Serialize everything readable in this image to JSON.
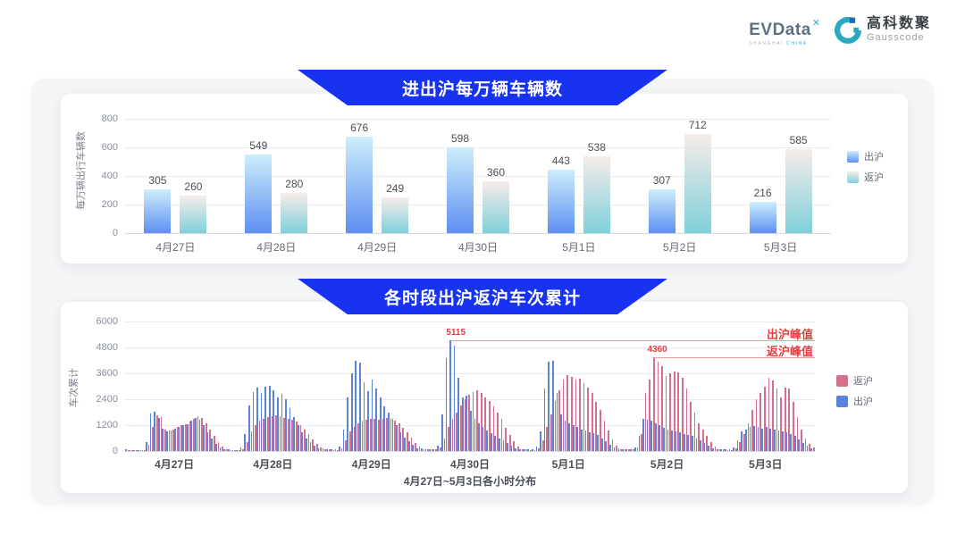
{
  "header": {
    "evdata": {
      "text": "EVData",
      "x_mark": "✕",
      "sub_left": "SHANGHAI",
      "sub_right": "CHINA"
    },
    "gausscode": {
      "name_cn": "高科数聚",
      "name_en": "Gausscode"
    }
  },
  "theme": {
    "banner_blue": "#1733f0",
    "c1_out_top": "#cdeefb",
    "c1_out_bottom": "#5e8ff2",
    "c1_ret_top": "#f7ece9",
    "c1_ret_bottom": "#7fd0da",
    "c2_out": "#5b82dc",
    "c2_ret": "#d5708c",
    "annotation_red": "#e04040",
    "logo_teal": "#35b4d6",
    "logo_slate": "#5d7186"
  },
  "chart_data": [
    {
      "type": "bar",
      "title": "进出沪每万辆车辆数",
      "ylabel": "每万辆出行车辆数",
      "xlabel": "",
      "ylim": [
        0,
        800
      ],
      "yticks": [
        0,
        200,
        400,
        600,
        800
      ],
      "grid": true,
      "legend_position": "right",
      "categories": [
        "4月27日",
        "4月28日",
        "4月29日",
        "4月30日",
        "5月1日",
        "5月2日",
        "5月3日"
      ],
      "series": [
        {
          "name": "出沪",
          "values": [
            305,
            549,
            676,
            598,
            443,
            307,
            216
          ]
        },
        {
          "name": "返沪",
          "values": [
            260,
            280,
            249,
            360,
            538,
            712,
            585
          ]
        }
      ]
    },
    {
      "type": "bar",
      "title": "各时段出沪返沪车次累计",
      "ylabel": "车次累计",
      "xlabel": "4月27日~5月3日各小时分布",
      "ylim": [
        0,
        6000
      ],
      "yticks": [
        0,
        1200,
        2400,
        3600,
        4800,
        6000
      ],
      "grid": true,
      "legend_position": "right",
      "categories": [
        "4月27日",
        "4月28日",
        "4月29日",
        "4月30日",
        "5月1日",
        "5月2日",
        "5月3日"
      ],
      "series": [
        {
          "name": "返沪",
          "values_by_day": [
            [
              60,
              45,
              40,
              40,
              50,
              300,
              1100,
              1650,
              1560,
              1000,
              950,
              1000,
              1100,
              1200,
              1260,
              1360,
              1500,
              1610,
              1550,
              1300,
              990,
              690,
              400,
              200
            ],
            [
              80,
              60,
              50,
              50,
              100,
              400,
              900,
              1200,
              1400,
              1500,
              1560,
              1600,
              1650,
              1600,
              1550,
              1500,
              1440,
              1350,
              1190,
              990,
              790,
              550,
              350,
              180
            ],
            [
              90,
              70,
              60,
              60,
              120,
              500,
              900,
              1100,
              1300,
              1400,
              1450,
              1500,
              1500,
              1450,
              1500,
              1550,
              1490,
              1390,
              1290,
              1090,
              890,
              640,
              390,
              200
            ],
            [
              100,
              80,
              70,
              70,
              150,
              600,
              1100,
              1500,
              1800,
              2100,
              2400,
              2600,
              2750,
              2800,
              2700,
              2500,
              2300,
              2090,
              1790,
              1490,
              1090,
              740,
              450,
              220
            ],
            [
              90,
              70,
              60,
              60,
              120,
              500,
              1100,
              1700,
              2300,
              2800,
              3300,
              3500,
              3440,
              3300,
              3350,
              3140,
              2940,
              2690,
              2290,
              1890,
              1390,
              940,
              540,
              250
            ],
            [
              100,
              80,
              70,
              70,
              150,
              800,
              2700,
              3300,
              4360,
              4150,
              3940,
              3490,
              3590,
              3690,
              3640,
              3390,
              2890,
              2290,
              1790,
              1290,
              990,
              690,
              400,
              200
            ],
            [
              80,
              70,
              60,
              60,
              120,
              400,
              800,
              1300,
              1900,
              2400,
              2690,
              2990,
              3400,
              3290,
              2890,
              2490,
              2940,
              2890,
              2290,
              1590,
              990,
              590,
              350,
              180
            ]
          ]
        },
        {
          "name": "出沪",
          "values_by_day": [
            [
              70,
              50,
              45,
              40,
              60,
              420,
              1750,
              1820,
              1520,
              1050,
              900,
              950,
              1050,
              1120,
              1180,
              1260,
              1420,
              1520,
              1440,
              1180,
              880,
              580,
              330,
              150
            ],
            [
              90,
              70,
              60,
              60,
              150,
              800,
              2100,
              2750,
              2920,
              2700,
              2960,
              3010,
              2800,
              2480,
              2650,
              2380,
              1980,
              1580,
              1180,
              880,
              600,
              400,
              250,
              120
            ],
            [
              110,
              90,
              70,
              70,
              200,
              1000,
              2500,
              3620,
              4200,
              4080,
              3180,
              2780,
              3300,
              2880,
              2480,
              2080,
              1780,
              1480,
              1180,
              880,
              640,
              440,
              270,
              140
            ],
            [
              120,
              100,
              80,
              80,
              250,
              1700,
              4320,
              5115,
              4880,
              3380,
              2480,
              2580,
              1880,
              1480,
              1280,
              1100,
              950,
              820,
              700,
              600,
              500,
              390,
              250,
              120
            ],
            [
              100,
              90,
              80,
              80,
              200,
              900,
              2900,
              4120,
              4200,
              2680,
              1680,
              1400,
              1300,
              1200,
              1100,
              1000,
              940,
              880,
              830,
              740,
              590,
              440,
              290,
              150
            ],
            [
              110,
              90,
              80,
              80,
              180,
              700,
              1500,
              1450,
              1400,
              1300,
              1190,
              1090,
              1000,
              950,
              900,
              850,
              800,
              740,
              690,
              590,
              490,
              390,
              250,
              130
            ],
            [
              90,
              80,
              70,
              70,
              150,
              500,
              900,
              1000,
              1100,
              1150,
              1100,
              1050,
              1100,
              1050,
              1000,
              950,
              900,
              850,
              790,
              690,
              540,
              390,
              250,
              120
            ]
          ]
        }
      ],
      "annotations": [
        {
          "series": "出沪",
          "label": "出沪峰值",
          "value": 5115,
          "value_label": "5115",
          "day_index": 3,
          "hour": 7
        },
        {
          "series": "返沪",
          "label": "返沪峰值",
          "value": 4360,
          "value_label": "4360",
          "day_index": 5,
          "hour": 8
        }
      ]
    }
  ]
}
